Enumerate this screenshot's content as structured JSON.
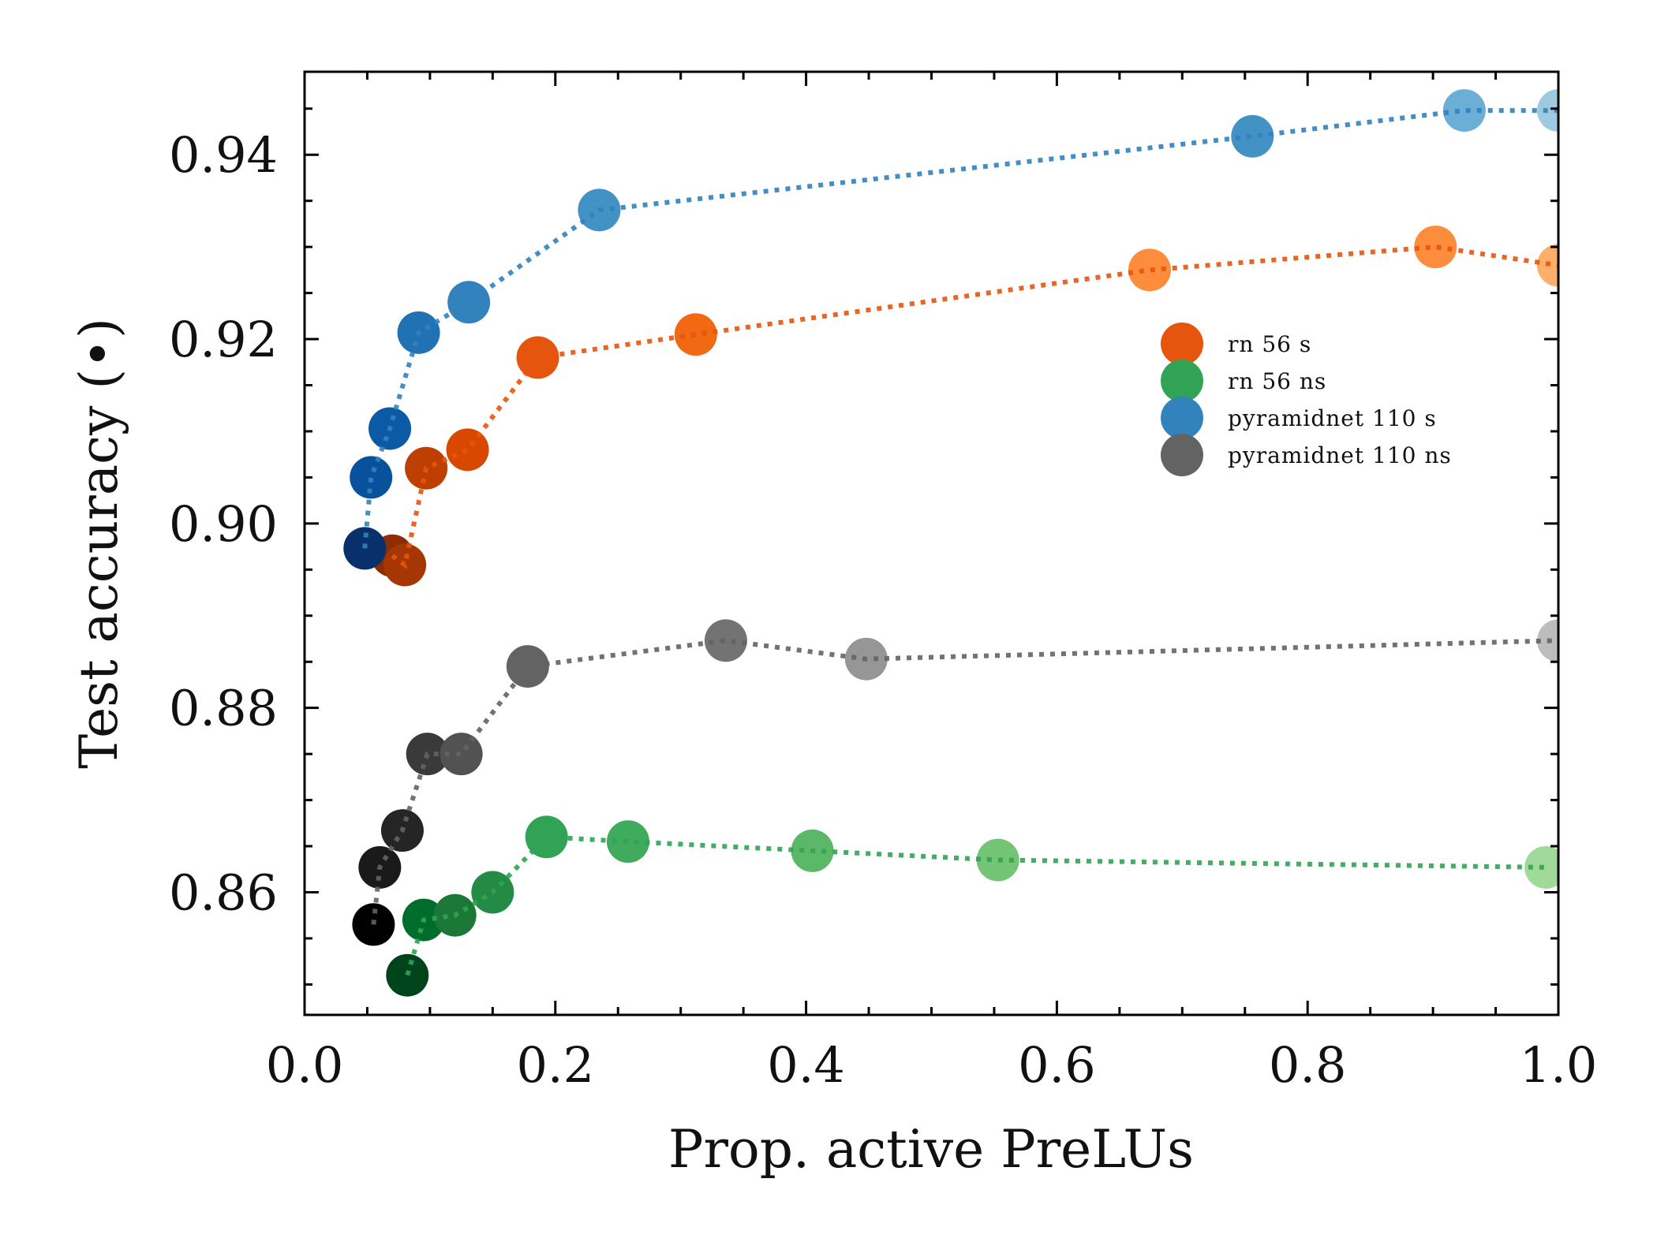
{
  "chart_data": {
    "type": "scatter",
    "title": "",
    "xlabel": "Prop. active PreLUs",
    "ylabel": "Test accuracy (•)",
    "xlim": [
      0.0,
      1.0
    ],
    "ylim": [
      0.8467,
      0.949
    ],
    "x_ticks": [
      0.0,
      0.2,
      0.4,
      0.6,
      0.8,
      1.0
    ],
    "x_tick_labels": [
      "0.0",
      "0.2",
      "0.4",
      "0.6",
      "0.8",
      "1.0"
    ],
    "y_ticks": [
      0.86,
      0.88,
      0.9,
      0.92,
      0.94
    ],
    "y_tick_labels": [
      "0.86",
      "0.88",
      "0.90",
      "0.92",
      "0.94"
    ],
    "grid": false,
    "legend_position": "upper-right",
    "series": [
      {
        "name": "rn 56 s",
        "legend_color": "#e6550d",
        "line_color": "#e6550d",
        "x": [
          0.07,
          0.08,
          0.097,
          0.13,
          0.186,
          0.312,
          0.674,
          0.902,
          1.0
        ],
        "y": [
          0.8965,
          0.8955,
          0.906,
          0.908,
          0.918,
          0.9205,
          0.9275,
          0.93,
          0.928
        ],
        "colors": [
          "#8c2d04",
          "#a63603",
          "#bd3f02",
          "#d94801",
          "#e6550d",
          "#f16913",
          "#fd8d3c",
          "#fd8d3c",
          "#fdae6b"
        ]
      },
      {
        "name": "rn 56 ns",
        "legend_color": "#31a354",
        "line_color": "#31a354",
        "x": [
          0.082,
          0.095,
          0.12,
          0.15,
          0.193,
          0.258,
          0.405,
          0.553,
          0.99
        ],
        "y": [
          0.851,
          0.857,
          0.8575,
          0.86,
          0.866,
          0.8655,
          0.8645,
          0.8635,
          0.8627
        ],
        "colors": [
          "#00441b",
          "#006d2c",
          "#1b7837",
          "#238b45",
          "#31a354",
          "#41ab5d",
          "#5ab868",
          "#74c476",
          "#a1d99b"
        ]
      },
      {
        "name": "pyramidnet 110 s",
        "legend_color": "#3182bd",
        "line_color": "#3182bd",
        "x": [
          0.048,
          0.053,
          0.068,
          0.091,
          0.131,
          0.235,
          0.756,
          0.925,
          1.0
        ],
        "y": [
          0.8973,
          0.905,
          0.9103,
          0.9207,
          0.924,
          0.934,
          0.942,
          0.9448,
          0.9448
        ],
        "colors": [
          "#08306b",
          "#08519c",
          "#0b5aa6",
          "#2171b5",
          "#3182bd",
          "#4292c6",
          "#4292c6",
          "#6baed6",
          "#9ecae1"
        ]
      },
      {
        "name": "pyramidnet 110 ns",
        "legend_color": "#636363",
        "line_color": "#636363",
        "x": [
          0.055,
          0.06,
          0.078,
          0.098,
          0.125,
          0.178,
          0.336,
          0.448,
          1.0
        ],
        "y": [
          0.8565,
          0.8627,
          0.8667,
          0.875,
          0.875,
          0.8845,
          0.8873,
          0.8853,
          0.8873
        ],
        "colors": [
          "#000000",
          "#1a1a1a",
          "#252525",
          "#3a3a3a",
          "#525252",
          "#636363",
          "#737373",
          "#969696",
          "#bdbdbd"
        ]
      }
    ]
  }
}
